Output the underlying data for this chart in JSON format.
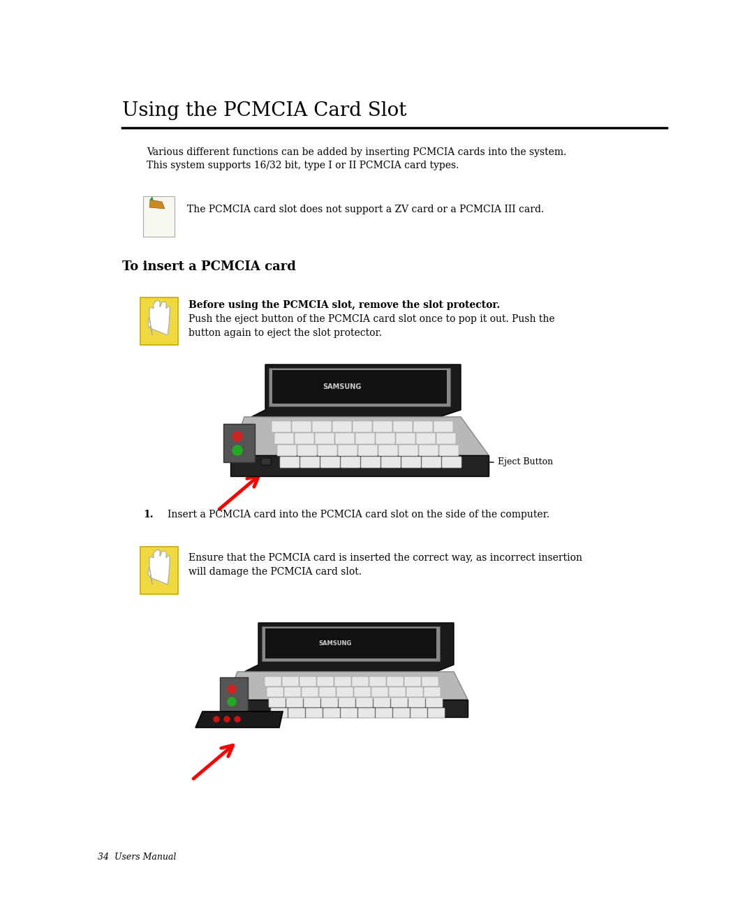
{
  "bg_color": "#ffffff",
  "title": "Using the PCMCIA Card Slot",
  "title_fontsize": 20,
  "title_font": "DejaVu Serif",
  "intro_text": "Various different functions can be added by inserting PCMCIA cards into the system.\nThis system supports 16/32 bit, type I or II PCMCIA card types.",
  "intro_fontsize": 10,
  "note_text": "The PCMCIA card slot does not support a ZV card or a PCMCIA III card.",
  "note_fontsize": 10,
  "section_title": "To insert a PCMCIA card",
  "section_title_fontsize": 13,
  "warn1_bold": "Before using the PCMCIA slot, remove the slot protector.",
  "warn1_text": "Push the eject button of the PCMCIA card slot once to pop it out. Push the\nbutton again to eject the slot protector.",
  "warn_fontsize": 10,
  "eject_label": "Eject Button",
  "eject_fontsize": 9,
  "step1_text": "Insert a PCMCIA card into the PCMCIA card slot on the side of the computer.",
  "step1_fontsize": 10,
  "warn2_text": "Ensure that the PCMCIA card is inserted the correct way, as incorrect insertion\nwill damage the PCMCIA card slot.",
  "footer_text": "34  Users Manual",
  "footer_fontsize": 9,
  "yellow_color": "#f0d840",
  "yellow_border": "#c8aa00"
}
